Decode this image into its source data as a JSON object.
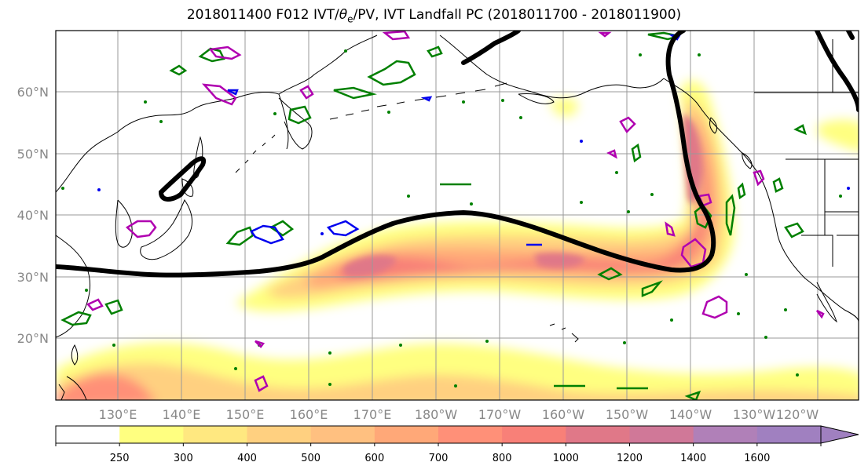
{
  "title": {
    "prefix": "2018011400 F012 IVT/",
    "theta": "θ",
    "theta_sub": "e",
    "suffix": "/PV, IVT Landfall PC (2018011700 - 2018011900)"
  },
  "map": {
    "lat_labels": [
      "60°N",
      "50°N",
      "40°N",
      "30°N",
      "20°N"
    ],
    "lon_labels": [
      "130°E",
      "140°E",
      "150°E",
      "160°E",
      "170°E",
      "180°W",
      "170°W",
      "160°W",
      "150°W",
      "140°W",
      "130°W",
      "120°W"
    ],
    "colors": {
      "land_line": "#000000",
      "grid": "#999999",
      "theta_e_contour": "#008000",
      "pv_contour_positive": "#b000b0",
      "pv_contour_negative": "#0000ee",
      "landfall_pc": "#000000"
    }
  },
  "colorbar": {
    "labels": [
      "250",
      "300",
      "400",
      "500",
      "600",
      "700",
      "800",
      "1000",
      "1200",
      "1400",
      "1600"
    ],
    "colors": [
      "#ffffff",
      "#ffff80",
      "#ffe880",
      "#ffd080",
      "#ffc080",
      "#ffa878",
      "#ff9078",
      "#f88078",
      "#e07888",
      "#d07898",
      "#b080b8",
      "#a080c0"
    ]
  }
}
